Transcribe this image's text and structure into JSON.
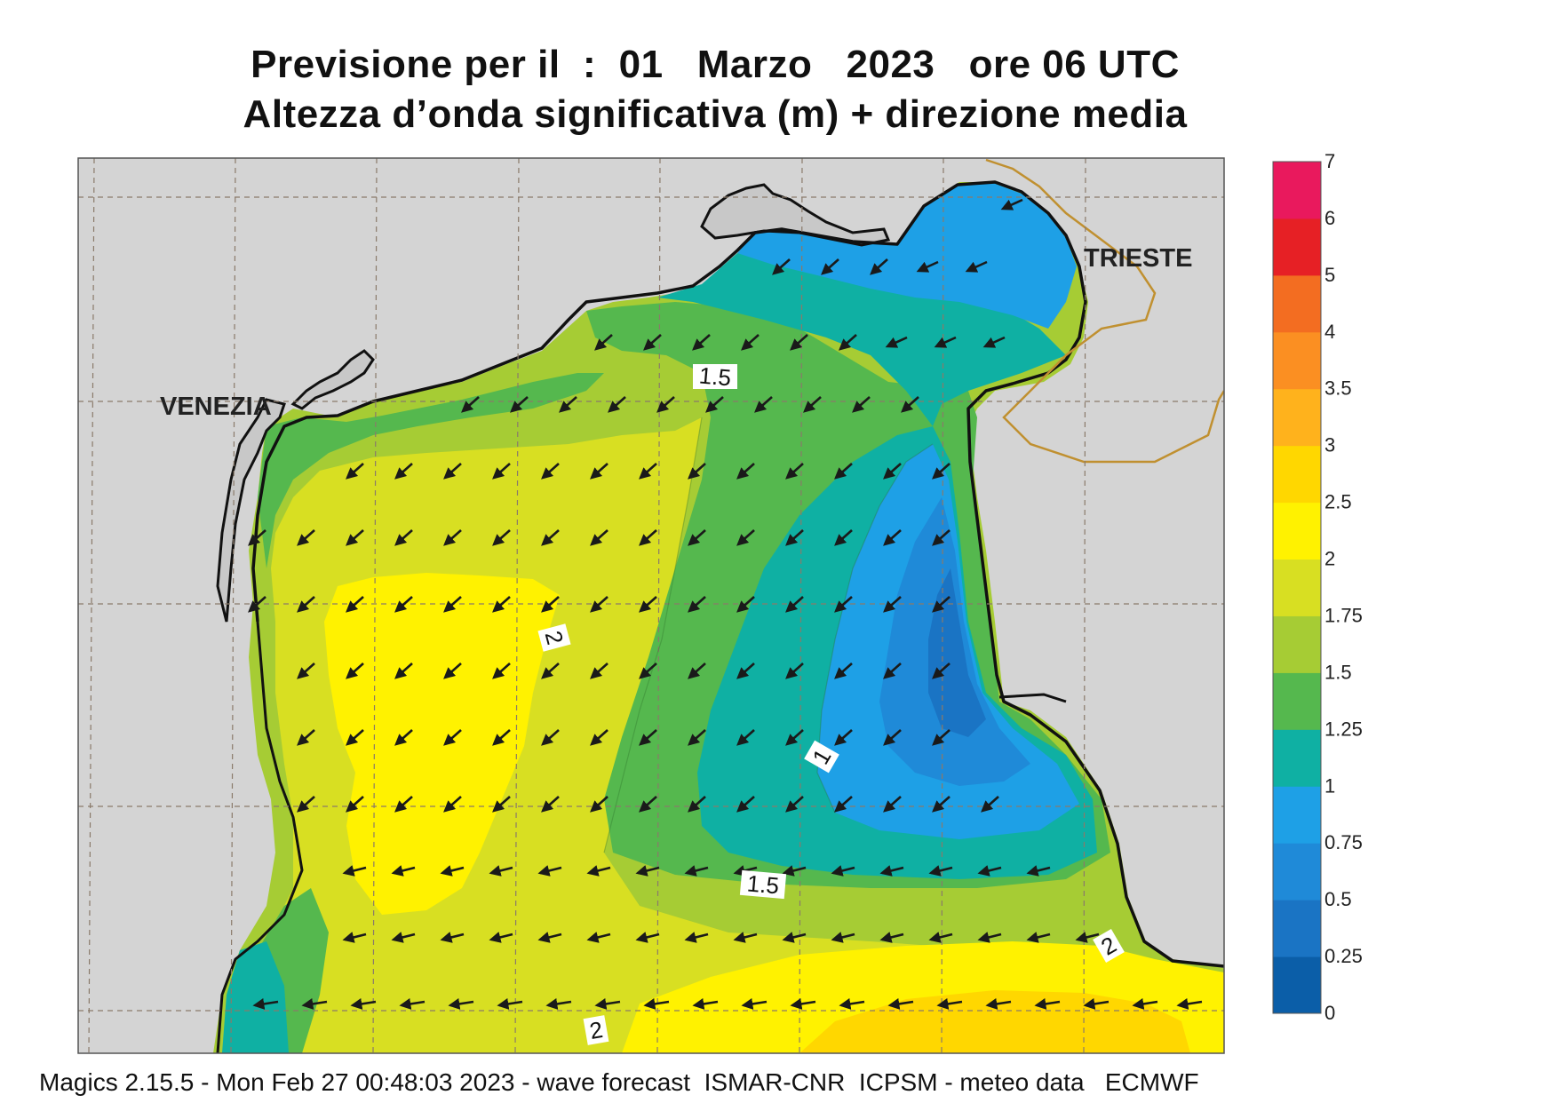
{
  "title": {
    "line1": "Previsione per il  :  01   Marzo   2023   ore 06 UTC",
    "line2": "Altezza d’onda significativa (m) + direzione media"
  },
  "places": {
    "venezia": "VENEZIA",
    "trieste": "TRIESTE"
  },
  "contour_labels": [
    {
      "text": "1.5"
    },
    {
      "text": "2"
    },
    {
      "text": "1"
    },
    {
      "text": "1.5"
    },
    {
      "text": "2"
    },
    {
      "text": "2"
    }
  ],
  "colorbar": {
    "levels": [
      "0",
      "0.25",
      "0.5",
      "0.75",
      "1",
      "1.25",
      "1.5",
      "1.75",
      "2",
      "2.5",
      "3",
      "3.5",
      "4",
      "5",
      "6",
      "7"
    ],
    "colors": [
      "#0b5ea8",
      "#1a74c4",
      "#1f8ad8",
      "#1ea0e6",
      "#0fb0a3",
      "#55b84e",
      "#a6cc34",
      "#d8df22",
      "#fff200",
      "#ffd700",
      "#ffb21c",
      "#fb8f22",
      "#f36d21",
      "#e62025",
      "#e9195d"
    ]
  },
  "footer": "Magics 2.15.5 - Mon Feb 27 00:48:03 2023 - wave forecast  ISMAR-CNR  ICPSM - meteo data   ECMWF",
  "wave_direction_arrows": "southwest-pointing"
}
